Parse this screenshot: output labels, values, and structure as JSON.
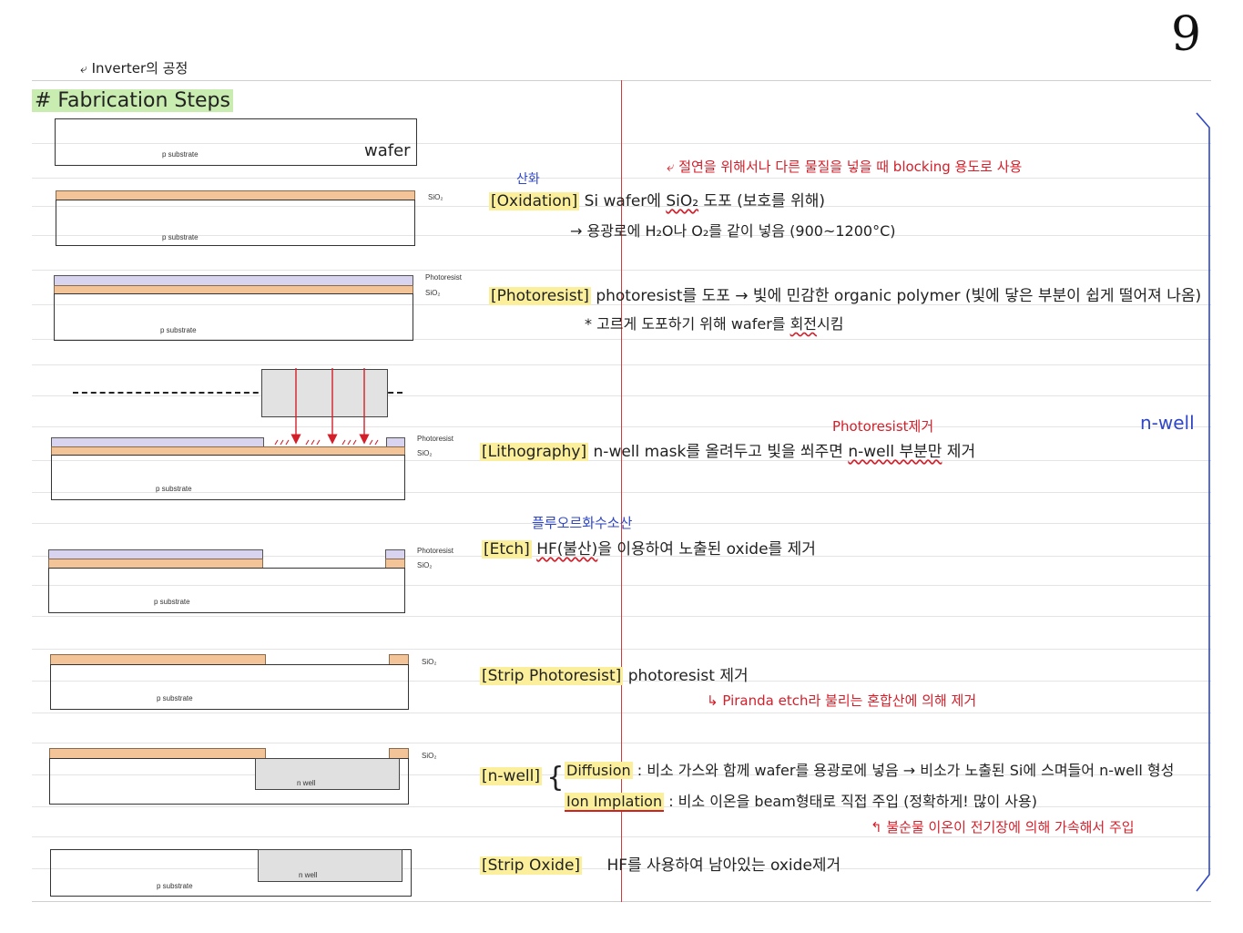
{
  "page_number": "9",
  "header": {
    "note": "Inverter의 공정",
    "title": "# Fabrication Steps",
    "side_label": "n-well"
  },
  "diagram_labels": {
    "p_substrate": "p substrate",
    "wafer": "wafer",
    "sio2": "SiO₂",
    "photoresist": "Photoresist",
    "n_well": "n well"
  },
  "steps": [
    {
      "tag": "[Oxidation]",
      "korean_note": "산화",
      "line1_prefix": "Si wafer에 ",
      "line1_sio2": "SiO₂",
      "line1_suffix": " 도포 (보호를 위해)",
      "line2": "→ 용광로에 H₂O나 O₂를 같이 넣음 (900~1200°C)",
      "red_note": "절연을 위해서나 다른 물질을 넣을 때 blocking 용도로 사용"
    },
    {
      "tag": "[Photoresist]",
      "line1": "photoresist를 도포 → 빛에 민감한 organic polymer (빛에 닿은 부분이 쉽게 떨어져 나옴)",
      "line2_prefix": "* 고르게 도포하기 위해 wafer를 ",
      "line2_emph": "회전",
      "line2_suffix": "시킴"
    },
    {
      "tag": "[Lithography]",
      "line1_prefix": "n-well mask를 올려두고 빛을 쐬주면 ",
      "line1_emph": "n-well 부분만",
      "line1_suffix": " 제거",
      "red_note": "Photoresist제거"
    },
    {
      "tag": "[Etch]",
      "blue_note": "플루오르화수소산",
      "line1_emph": "HF(불산)",
      "line1_suffix": "을 이용하여 노출된 oxide를 제거"
    },
    {
      "tag": "[Strip Photoresist]",
      "line1": "photoresist 제거",
      "red_note": "Piranda etch라 불리는 혼합산에 의해 제거"
    },
    {
      "tag": "[n-well]",
      "diffusion_label": "Diffusion",
      "diffusion_text": ": 비소 가스와 함께 wafer를 용광로에 넣음 → 비소가 노출된 Si에 스며들어 n-well 형성",
      "implant_label": "Ion Implation",
      "implant_text": ": 비소 이온을 beam형태로 직접 주입 (정확하게! 많이 사용)",
      "red_note": "불순물 이온이 전기장에 의해 가속해서 주입"
    },
    {
      "tag": "[Strip Oxide]",
      "line1": "HF를 사용하여 남아있는 oxide제거"
    }
  ],
  "colors": {
    "sio2": "#f2c497",
    "photoresist": "#d8d4ef",
    "nwell": "#e0e0e0",
    "highlight": "#fbef9c",
    "red": "#d41f2a",
    "blue": "#2f47c7"
  }
}
